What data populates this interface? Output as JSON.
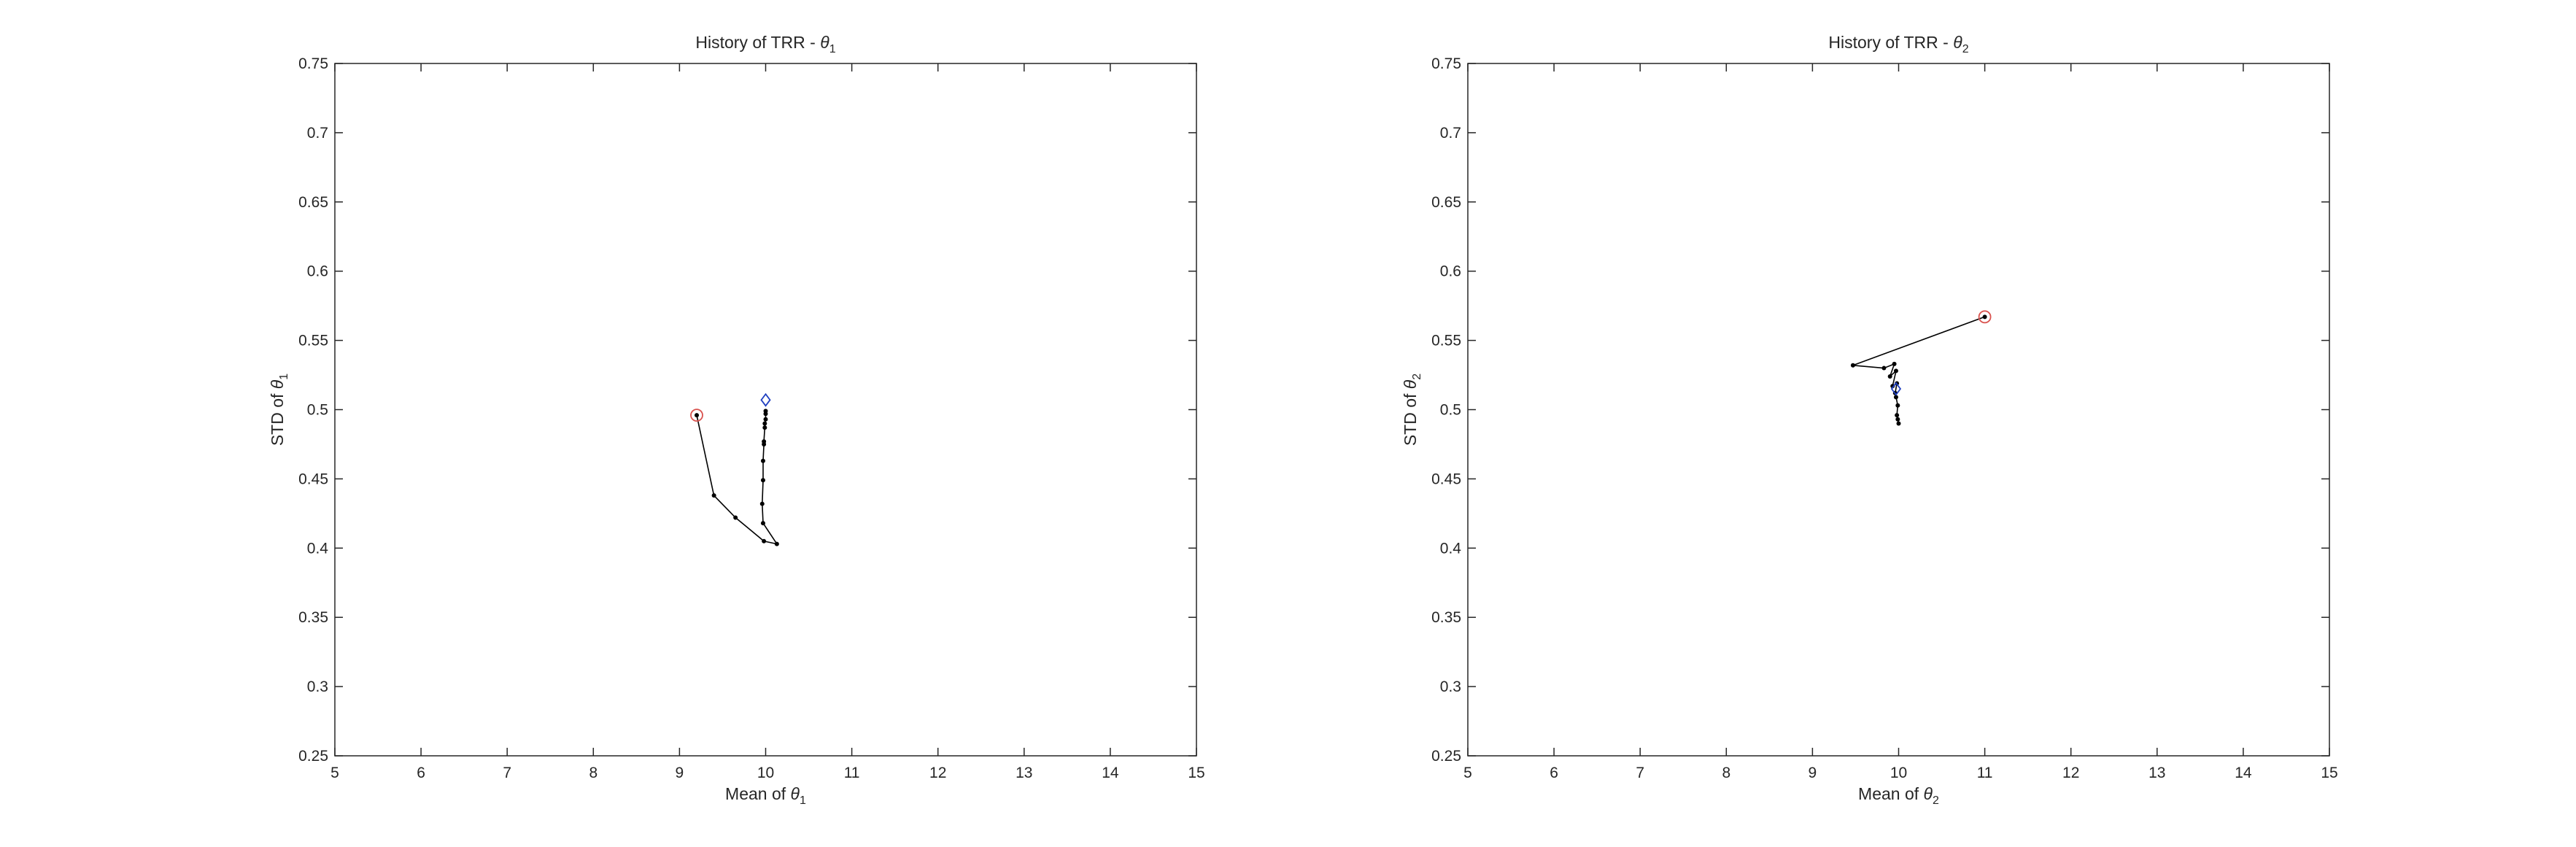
{
  "chart_data": [
    {
      "type": "line",
      "title": {
        "main": "History of TRR - ",
        "theta": "θ",
        "sub": "1"
      },
      "xlabel": {
        "main": "Mean of ",
        "theta": "θ",
        "sub": "1"
      },
      "ylabel": {
        "main": "STD of ",
        "theta": "θ",
        "sub": "1"
      },
      "xlim": [
        5,
        15
      ],
      "ylim": [
        0.25,
        0.75
      ],
      "xticks": [
        "5",
        "6",
        "7",
        "8",
        "9",
        "10",
        "11",
        "12",
        "13",
        "14",
        "15"
      ],
      "yticks": [
        "0.25",
        "0.3",
        "0.35",
        "0.4",
        "0.45",
        "0.5",
        "0.55",
        "0.6",
        "0.65",
        "0.7",
        "0.75"
      ],
      "grid": false,
      "series": [
        {
          "x": [
            9.2,
            9.4,
            9.65,
            9.98,
            10.13,
            9.97,
            9.96,
            9.97,
            9.97,
            9.98,
            9.98,
            9.99,
            9.99,
            10.0,
            10.0,
            10.0
          ],
          "y": [
            0.496,
            0.438,
            0.422,
            0.405,
            0.403,
            0.418,
            0.432,
            0.449,
            0.463,
            0.475,
            0.477,
            0.487,
            0.49,
            0.493,
            0.497,
            0.499
          ],
          "color": "#000000"
        }
      ],
      "start_marker": {
        "x": 9.2,
        "y": 0.496,
        "shape": "circle",
        "color": "#d9534f"
      },
      "end_marker": {
        "x": 10.0,
        "y": 0.507,
        "shape": "diamond",
        "color": "#2040c0"
      }
    },
    {
      "type": "line",
      "title": {
        "main": "History of TRR - ",
        "theta": "θ",
        "sub": "2"
      },
      "xlabel": {
        "main": "Mean of ",
        "theta": "θ",
        "sub": "2"
      },
      "ylabel": {
        "main": "STD of ",
        "theta": "θ",
        "sub": "2"
      },
      "xlim": [
        5,
        15
      ],
      "ylim": [
        0.25,
        0.75
      ],
      "xticks": [
        "5",
        "6",
        "7",
        "8",
        "9",
        "10",
        "11",
        "12",
        "13",
        "14",
        "15"
      ],
      "yticks": [
        "0.25",
        "0.3",
        "0.35",
        "0.4",
        "0.45",
        "0.5",
        "0.55",
        "0.6",
        "0.65",
        "0.7",
        "0.75"
      ],
      "grid": false,
      "series": [
        {
          "x": [
            11.0,
            9.47,
            9.83,
            9.95,
            9.9,
            9.97,
            9.93,
            9.98,
            9.96,
            9.97,
            9.99,
            9.98,
            10.0,
            9.99
          ],
          "y": [
            0.567,
            0.532,
            0.53,
            0.533,
            0.524,
            0.528,
            0.517,
            0.519,
            0.512,
            0.509,
            0.503,
            0.496,
            0.49,
            0.493
          ],
          "color": "#000000"
        }
      ],
      "start_marker": {
        "x": 11.0,
        "y": 0.567,
        "shape": "circle",
        "color": "#d9534f"
      },
      "end_marker": {
        "x": 9.97,
        "y": 0.515,
        "shape": "diamond",
        "color": "#2040c0"
      }
    }
  ]
}
